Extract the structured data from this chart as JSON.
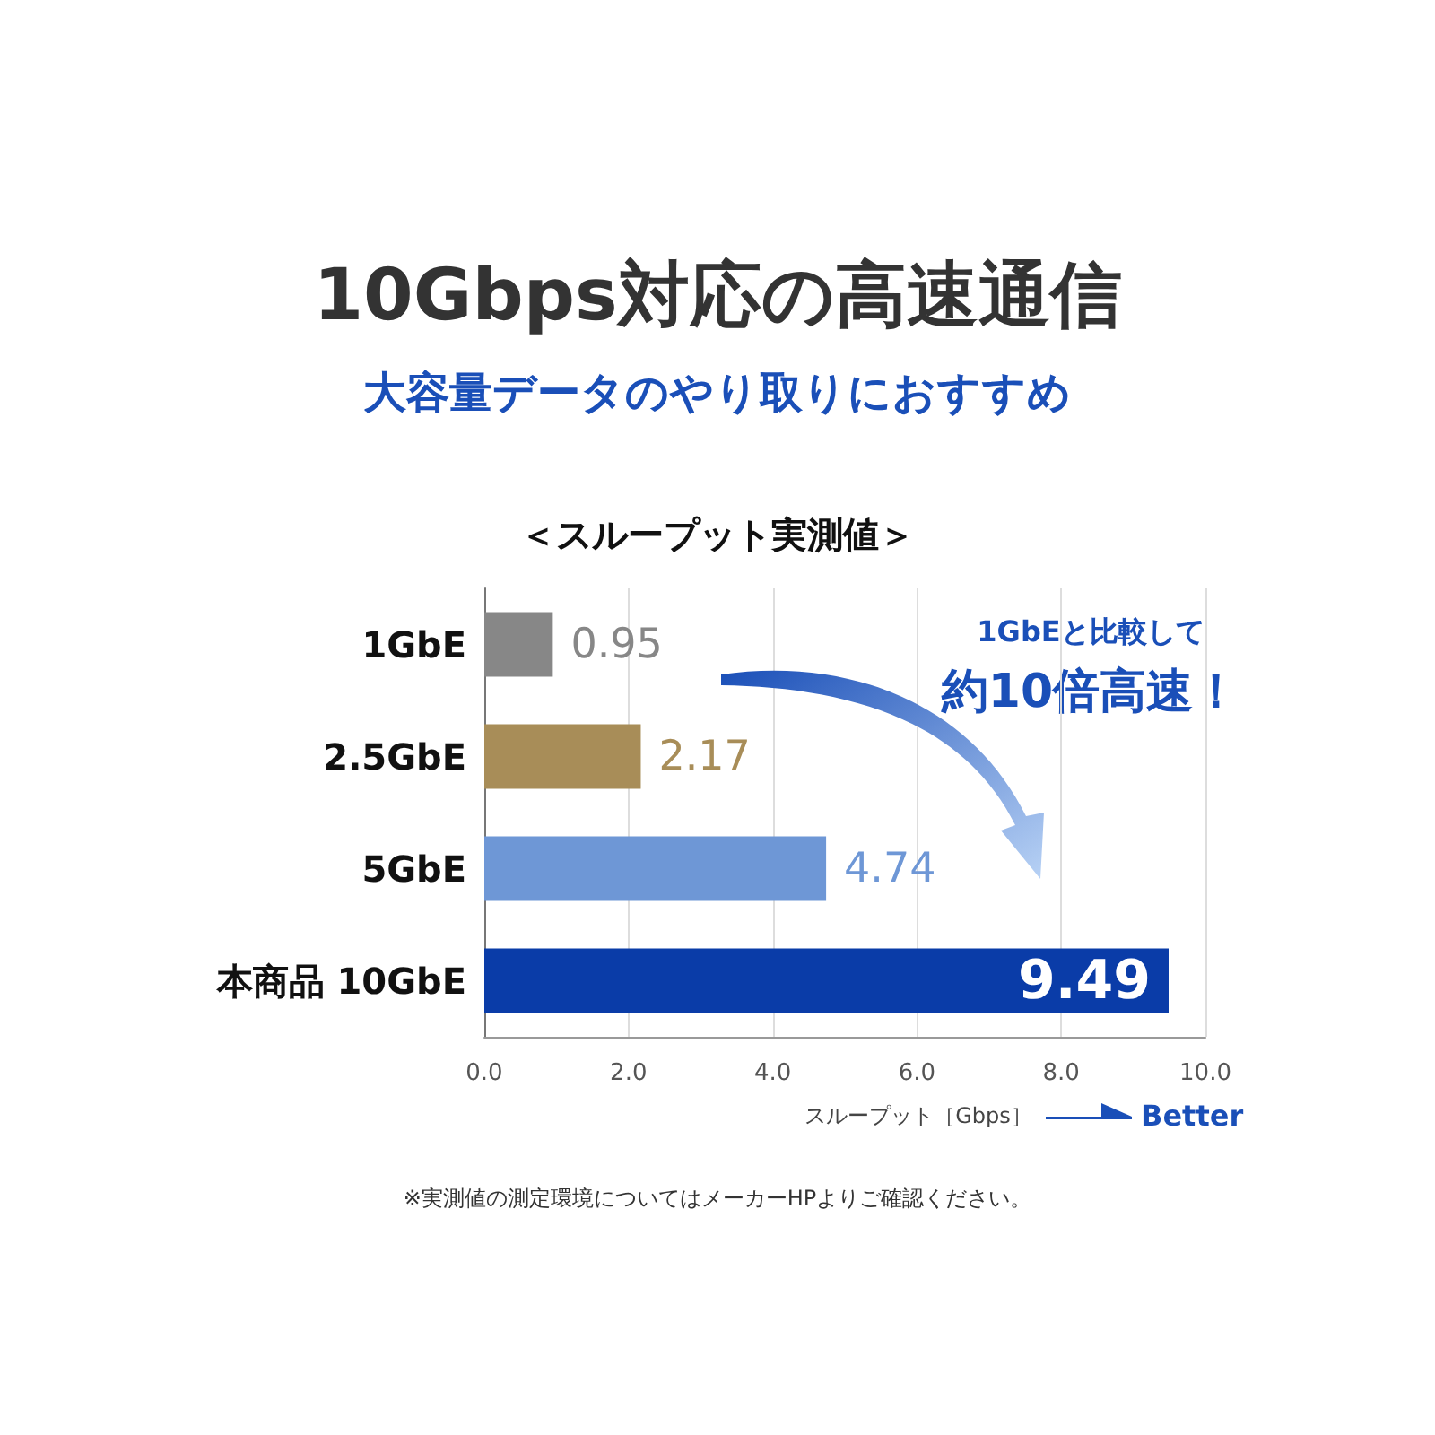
{
  "chart_data": {
    "type": "bar",
    "orientation": "horizontal",
    "title": "10Gbps対応の高速通信",
    "subtitle": "大容量データのやり取りにおすすめ",
    "xlabel": "スループット［Gbps］",
    "categories": [
      "1GbE",
      "2.5GbE",
      "5GbE",
      "本商品 10GbE"
    ],
    "values": [
      0.95,
      2.17,
      4.74,
      9.49
    ],
    "colors": [
      "#878787",
      "#a88d58",
      "#6e97d6",
      "#0a3ca8"
    ],
    "data_labels": true,
    "xlim": [
      0,
      10
    ],
    "xticks": [
      {
        "value": 0,
        "label": "0.0"
      },
      {
        "value": 2,
        "label": "2.0"
      },
      {
        "value": 4,
        "label": "4.0"
      },
      {
        "value": 6,
        "label": "6.0"
      },
      {
        "value": 8,
        "label": "8.0"
      },
      {
        "value": 10,
        "label": "10.0"
      }
    ],
    "grid": "x",
    "annotations": [
      "＜スループット実測値＞",
      "1GbEと比較して",
      "約10倍高速！",
      "Better",
      "※実測値の測定環境についてはメーカーHPよりご確認ください。"
    ]
  }
}
